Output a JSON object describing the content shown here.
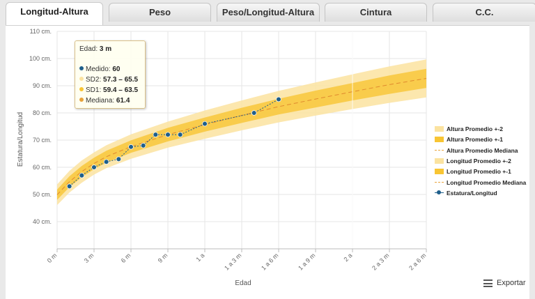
{
  "tabs": [
    {
      "label": "Longitud-Altura",
      "active": true
    },
    {
      "label": "Peso",
      "active": false
    },
    {
      "label": "Peso/Longitud-Altura",
      "active": false
    },
    {
      "label": "Cintura",
      "active": false
    },
    {
      "label": "C.C.",
      "active": false
    }
  ],
  "chart_data": {
    "type": "line",
    "xlabel": "Edad",
    "ylabel": "Estatura/Longitud",
    "x_ticks": [
      "0 m",
      "3 m",
      "6 m",
      "9 m",
      "1 a",
      "1 a 3 m",
      "1 a 6 m",
      "1 a 9 m",
      "2 a",
      "2 a 3 m",
      "2 a 6 m"
    ],
    "x_range_months": [
      0,
      30
    ],
    "y_ticks": [
      "40 cm.",
      "50 cm.",
      "60 cm.",
      "70 cm.",
      "80 cm.",
      "90 cm.",
      "100 cm.",
      "110 cm."
    ],
    "ylim": [
      30,
      110
    ],
    "grid": true,
    "legend_position": "right",
    "bands": {
      "months": [
        0,
        1,
        2,
        3,
        4,
        6,
        9,
        12,
        15,
        18,
        21,
        24,
        27,
        30
      ],
      "median": [
        49.9,
        54.7,
        58.4,
        61.4,
        63.9,
        67.6,
        72.0,
        75.7,
        79.1,
        82.3,
        85.1,
        87.8,
        90.4,
        92.7
      ],
      "sd1_half": [
        1.9,
        2.0,
        2.1,
        2.1,
        2.2,
        2.3,
        2.5,
        2.6,
        2.8,
        2.9,
        3.1,
        3.2,
        3.4,
        3.5
      ],
      "sd2_half": [
        3.8,
        4.0,
        4.1,
        4.1,
        4.2,
        4.5,
        4.8,
        5.2,
        5.5,
        5.8,
        6.1,
        6.4,
        6.7,
        7.0
      ]
    },
    "series": [
      {
        "name": "Estatura/Longitud",
        "color": "#1f5f8b",
        "points": [
          {
            "x": 1,
            "y": 53
          },
          {
            "x": 2,
            "y": 57
          },
          {
            "x": 3,
            "y": 60
          },
          {
            "x": 4,
            "y": 62
          },
          {
            "x": 5,
            "y": 63
          },
          {
            "x": 6,
            "y": 67.5
          },
          {
            "x": 7,
            "y": 68
          },
          {
            "x": 8,
            "y": 72
          },
          {
            "x": 9,
            "y": 72
          },
          {
            "x": 10,
            "y": 72
          },
          {
            "x": 12,
            "y": 76
          },
          {
            "x": 16,
            "y": 80
          },
          {
            "x": 18,
            "y": 85
          }
        ]
      }
    ],
    "legend": [
      {
        "label": "Altura Promedio +-2",
        "style": "band2",
        "color": "#fbe3a0"
      },
      {
        "label": "Altura Promedio +-1",
        "style": "band1",
        "color": "#f8c533"
      },
      {
        "label": "Altura Promedio Mediana",
        "style": "dash",
        "color": "#e8a33a"
      },
      {
        "label": "Longitud Promedio +-2",
        "style": "band2",
        "color": "#fbe3a0"
      },
      {
        "label": "Longitud Promedio +-1",
        "style": "band1",
        "color": "#f8c533"
      },
      {
        "label": "Longitud Promedio Mediana",
        "style": "dash",
        "color": "#e8a33a"
      },
      {
        "label": "Estatura/Longitud",
        "style": "marker",
        "color": "#1f5f8b"
      }
    ]
  },
  "tooltip": {
    "title_label": "Edad:",
    "title_value": "3 m",
    "rows": [
      {
        "label": "Medido:",
        "value": "60",
        "color": "#1f5f8b"
      },
      {
        "label": "SD2:",
        "value": "57.3 – 65.5",
        "color": "#fbe3a0"
      },
      {
        "label": "SD1:",
        "value": "59.4 – 63.5",
        "color": "#f8c533"
      },
      {
        "label": "Mediana:",
        "value": "61.4",
        "color": "#e8a33a"
      }
    ]
  },
  "export": {
    "label": "Exportar",
    "icon": "hamburger-icon"
  }
}
